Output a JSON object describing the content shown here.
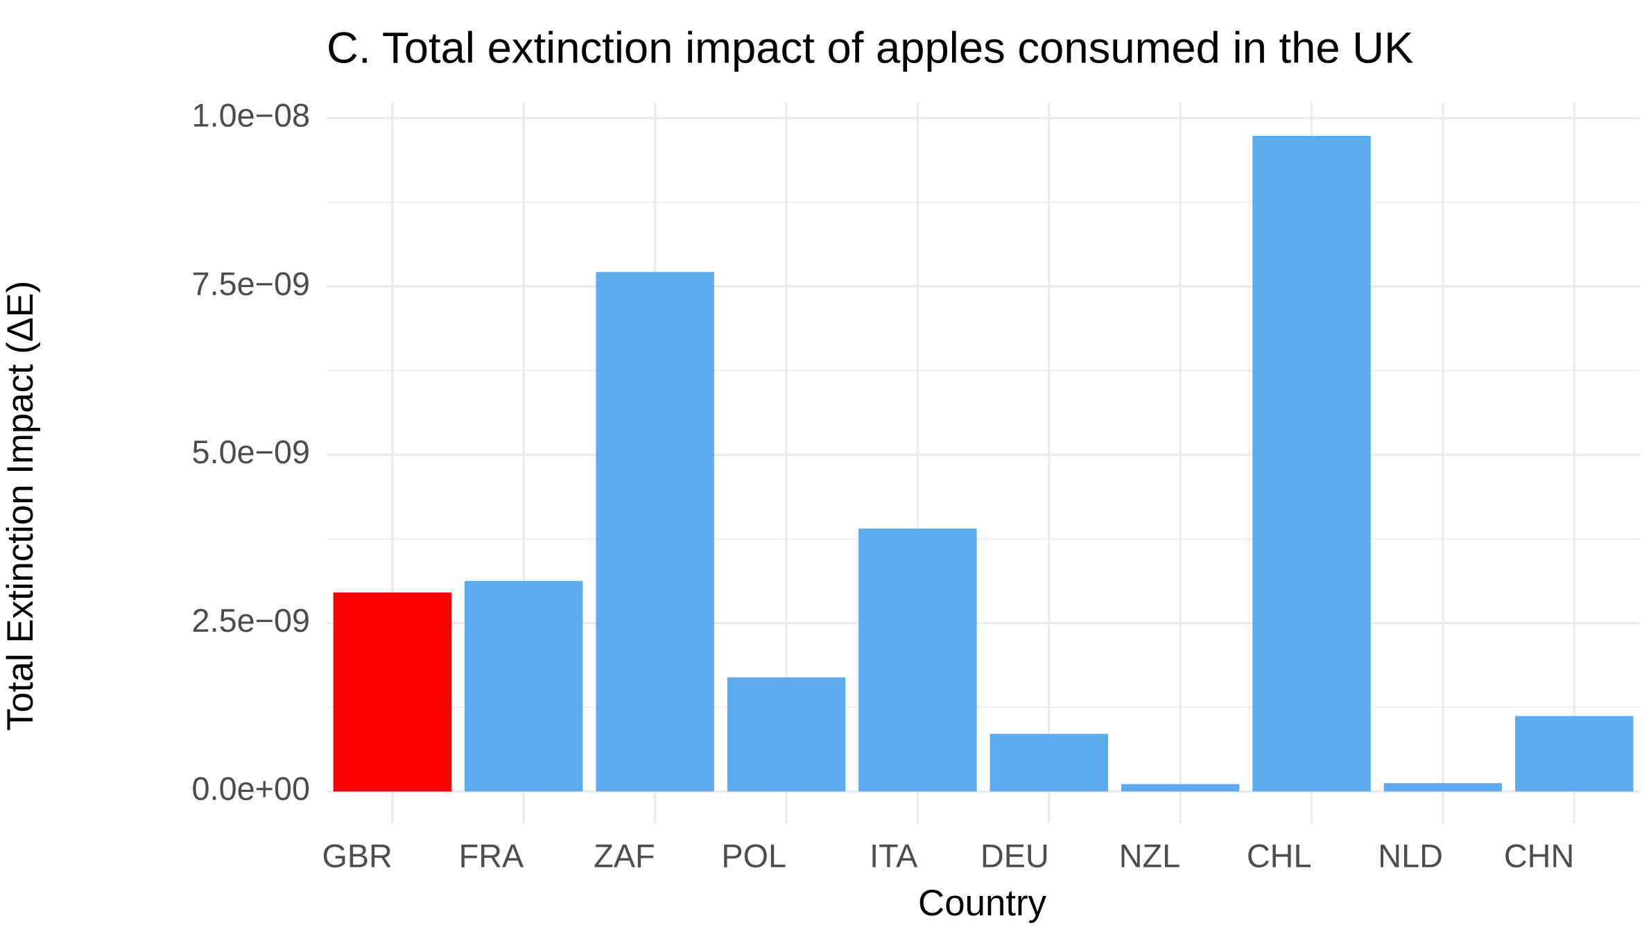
{
  "chart_data": {
    "type": "bar",
    "title": "C. Total extinction impact of apples consumed in the UK",
    "x_label": "Country",
    "y_label": "Total Extinction Impact (ΔE)",
    "categories": [
      "GBR",
      "FRA",
      "ZAF",
      "POL",
      "ITA",
      "DEU",
      "NZL",
      "CHL",
      "NLD",
      "CHN"
    ],
    "values": [
      2.955e-09,
      3.126e-09,
      7.714e-09,
      1.695e-09,
      3.904e-09,
      8.55e-10,
      1.09e-10,
      9.736e-09,
      1.24e-10,
      1.12e-09
    ],
    "colors": [
      "#ff0000",
      "#5dabec",
      "#5dabec",
      "#5dabec",
      "#5dabec",
      "#5dabec",
      "#5dabec",
      "#5dabec",
      "#5dabec",
      "#5dabec"
    ],
    "ylim": [
      -4.7e-10,
      1.023e-08
    ],
    "yticks": [
      {
        "value": 0,
        "label": "0.0e+00"
      },
      {
        "value": 2.5e-09,
        "label": "2.5e−09"
      },
      {
        "value": 5e-09,
        "label": "5.0e−09"
      },
      {
        "value": 7.5e-09,
        "label": "7.5e−09"
      },
      {
        "value": 1e-08,
        "label": "1.0e−08"
      }
    ],
    "minor_yticks": [
      1.25e-09,
      3.75e-09,
      6.25e-09,
      8.75e-09
    ],
    "grid": true
  }
}
